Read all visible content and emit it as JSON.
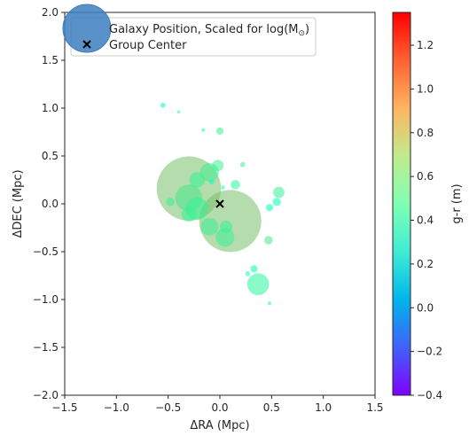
{
  "chart_data": {
    "type": "scatter",
    "xlabel": "ΔRA (Mpc)",
    "ylabel": "ΔDEC (Mpc)",
    "xlim": [
      -1.5,
      1.5
    ],
    "ylim": [
      -2.0,
      2.0
    ],
    "xticks": [
      "−1.5",
      "−1.0",
      "−0.5",
      "0.0",
      "0.5",
      "1.0",
      "1.5"
    ],
    "yticks": [
      "−2.0",
      "−1.5",
      "−1.0",
      "−0.5",
      "0.0",
      "0.5",
      "1.0",
      "1.5",
      "2.0"
    ],
    "grid": false,
    "legend_position": "top-left",
    "legend": [
      {
        "label": "Galaxy Position, Scaled for log(M",
        "sub": "⊙",
        "close": ")",
        "marker": "circle",
        "color": "#3b7fc0"
      },
      {
        "label": "Group Center",
        "marker": "x",
        "color": "#000000"
      }
    ],
    "colorbar": {
      "label": "g-r (m)",
      "range": [
        -0.4,
        1.35
      ],
      "ticks": [
        "−0.4",
        "−0.2",
        "0.0",
        "0.2",
        "0.4",
        "0.6",
        "0.8",
        "1.0",
        "1.2"
      ],
      "colormap": "rainbow"
    },
    "group_center": {
      "x": 0.0,
      "y": 0.0
    },
    "galaxies": [
      {
        "x": -0.3,
        "y": 0.16,
        "size": 0.62,
        "gr": 0.88
      },
      {
        "x": 0.1,
        "y": -0.18,
        "size": 0.6,
        "gr": 0.88
      },
      {
        "x": -0.3,
        "y": 0.06,
        "size": 0.26,
        "gr": 0.72
      },
      {
        "x": -0.22,
        "y": -0.05,
        "size": 0.22,
        "gr": 0.65
      },
      {
        "x": -0.1,
        "y": 0.33,
        "size": 0.18,
        "gr": 0.68
      },
      {
        "x": -0.22,
        "y": 0.25,
        "size": 0.15,
        "gr": 0.65
      },
      {
        "x": -0.1,
        "y": -0.24,
        "size": 0.17,
        "gr": 0.66
      },
      {
        "x": 0.05,
        "y": -0.35,
        "size": 0.18,
        "gr": 0.66
      },
      {
        "x": 0.37,
        "y": -0.84,
        "size": 0.21,
        "gr": 0.62
      },
      {
        "x": -0.3,
        "y": -0.11,
        "size": 0.14,
        "gr": 0.65
      },
      {
        "x": 0.57,
        "y": 0.12,
        "size": 0.11,
        "gr": 0.66
      },
      {
        "x": 0.06,
        "y": -0.24,
        "size": 0.12,
        "gr": 0.65
      },
      {
        "x": -0.02,
        "y": 0.4,
        "size": 0.11,
        "gr": 0.68
      },
      {
        "x": 0.15,
        "y": 0.2,
        "size": 0.09,
        "gr": 0.62
      },
      {
        "x": -0.48,
        "y": 0.02,
        "size": 0.08,
        "gr": 0.65
      },
      {
        "x": 0.47,
        "y": -0.38,
        "size": 0.08,
        "gr": 0.72
      },
      {
        "x": 0.55,
        "y": 0.02,
        "size": 0.08,
        "gr": 0.5
      },
      {
        "x": 0.48,
        "y": -0.04,
        "size": 0.07,
        "gr": 0.48
      },
      {
        "x": 0.33,
        "y": -0.68,
        "size": 0.07,
        "gr": 0.5
      },
      {
        "x": 0.0,
        "y": 0.76,
        "size": 0.07,
        "gr": 0.66
      },
      {
        "x": -0.55,
        "y": 1.03,
        "size": 0.05,
        "gr": 0.45
      },
      {
        "x": 0.22,
        "y": 0.41,
        "size": 0.05,
        "gr": 0.7
      },
      {
        "x": 0.03,
        "y": 0.17,
        "size": 0.04,
        "gr": 0.38
      },
      {
        "x": -0.08,
        "y": 0.23,
        "size": 0.05,
        "gr": 0.42
      },
      {
        "x": 0.27,
        "y": -0.73,
        "size": 0.05,
        "gr": 0.38
      },
      {
        "x": -0.16,
        "y": 0.77,
        "size": 0.035,
        "gr": 0.42
      },
      {
        "x": 0.48,
        "y": -1.04,
        "size": 0.035,
        "gr": 0.42
      },
      {
        "x": -0.4,
        "y": 0.96,
        "size": 0.03,
        "gr": 0.42
      }
    ]
  }
}
